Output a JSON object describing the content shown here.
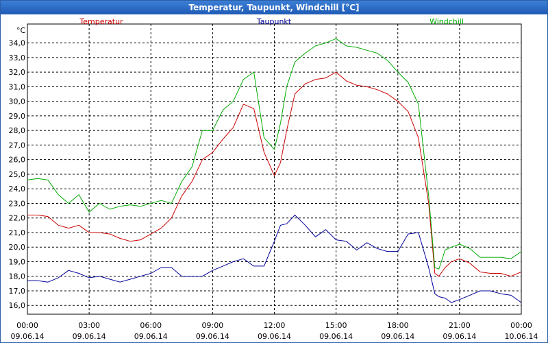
{
  "window": {
    "title": "Temperatur, Taupunkt, Windchill [°C]"
  },
  "chart_data": {
    "type": "line",
    "title": "Temperatur, Taupunkt, Windchill [°C]",
    "ylabel": "°C",
    "ylim": [
      15.4,
      35.3
    ],
    "xlim": [
      "2014-06-09T00:00",
      "2014-06-10T00:00"
    ],
    "grid": true,
    "y_ticks": [
      "16,0",
      "17,0",
      "18,0",
      "19,0",
      "20,0",
      "21,0",
      "22,0",
      "23,0",
      "24,0",
      "25,0",
      "26,0",
      "27,0",
      "28,0",
      "29,0",
      "30,0",
      "31,0",
      "32,0",
      "33,0",
      "34,0"
    ],
    "x_ticks": [
      {
        "time": "00:00",
        "date": "09.06.14"
      },
      {
        "time": "03:00",
        "date": "09.06.14"
      },
      {
        "time": "06:00",
        "date": "09.06.14"
      },
      {
        "time": "09:00",
        "date": "09.06.14"
      },
      {
        "time": "12:00",
        "date": "09.06.14"
      },
      {
        "time": "15:00",
        "date": "09.06.14"
      },
      {
        "time": "18:00",
        "date": "09.06.14"
      },
      {
        "time": "21:00",
        "date": "09.06.14"
      },
      {
        "time": "00:00",
        "date": "10.06.14"
      }
    ],
    "series": [
      {
        "name": "Temperatur",
        "color": "#cc0000",
        "x": [
          0,
          0.5,
          1,
          1.5,
          2,
          2.5,
          3,
          3.5,
          4,
          4.5,
          5,
          5.5,
          6,
          6.5,
          7,
          7.5,
          8,
          8.5,
          9,
          9.5,
          10,
          10.5,
          11,
          11.5,
          12,
          12.3,
          12.6,
          13,
          13.5,
          14,
          14.5,
          15,
          15.5,
          16,
          16.5,
          17,
          17.5,
          18,
          18.5,
          19,
          19.5,
          19.8,
          20,
          20.3,
          20.6,
          21,
          21.5,
          22,
          22.5,
          23,
          23.5,
          24
        ],
        "y": [
          22.2,
          22.2,
          22.1,
          21.5,
          21.3,
          21.5,
          21.0,
          21.0,
          20.9,
          20.6,
          20.4,
          20.5,
          20.9,
          21.3,
          22.0,
          23.5,
          24.5,
          26.0,
          26.5,
          27.4,
          28.2,
          29.8,
          29.5,
          26.5,
          24.9,
          25.8,
          28.0,
          30.5,
          31.2,
          31.5,
          31.6,
          32.0,
          31.4,
          31.1,
          31.0,
          30.8,
          30.5,
          30.0,
          29.3,
          27.5,
          23.0,
          18.2,
          18.0,
          18.6,
          19.0,
          19.2,
          18.9,
          18.3,
          18.2,
          18.2,
          18.0,
          18.3
        ]
      },
      {
        "name": "Taupunkt",
        "color": "#000099",
        "x": [
          0,
          0.5,
          1,
          1.5,
          2,
          2.5,
          3,
          3.5,
          4,
          4.5,
          5,
          5.5,
          6,
          6.5,
          7,
          7.5,
          8,
          8.5,
          9,
          9.5,
          10,
          10.5,
          11,
          11.5,
          12,
          12.3,
          12.6,
          13,
          13.5,
          14,
          14.5,
          15,
          15.5,
          16,
          16.5,
          17,
          17.5,
          18,
          18.5,
          19,
          19.5,
          19.8,
          20,
          20.3,
          20.6,
          21,
          21.5,
          22,
          22.5,
          23,
          23.5,
          24
        ],
        "y": [
          17.7,
          17.7,
          17.6,
          17.9,
          18.4,
          18.2,
          17.9,
          18.0,
          17.8,
          17.6,
          17.8,
          18.0,
          18.2,
          18.6,
          18.6,
          18.0,
          18.0,
          18.0,
          18.4,
          18.7,
          19.0,
          19.2,
          18.7,
          18.7,
          20.4,
          21.5,
          21.6,
          22.2,
          21.5,
          20.7,
          21.2,
          20.5,
          20.4,
          19.8,
          20.3,
          19.9,
          19.7,
          19.7,
          20.9,
          21.0,
          18.6,
          16.8,
          16.6,
          16.5,
          16.2,
          16.4,
          16.7,
          17.0,
          17.0,
          16.8,
          16.7,
          16.2
        ]
      },
      {
        "name": "Windchill",
        "color": "#00aa00",
        "x": [
          0,
          0.5,
          1,
          1.5,
          2,
          2.5,
          3,
          3.5,
          4,
          4.5,
          5,
          5.5,
          6,
          6.5,
          7,
          7.5,
          8,
          8.5,
          9,
          9.5,
          10,
          10.5,
          11,
          11.5,
          12,
          12.3,
          12.6,
          13,
          13.5,
          14,
          14.5,
          15,
          15.5,
          16,
          16.5,
          17,
          17.5,
          18,
          18.5,
          19,
          19.5,
          19.8,
          20,
          20.3,
          20.6,
          21,
          21.5,
          22,
          22.5,
          23,
          23.5,
          24
        ],
        "y": [
          24.6,
          24.7,
          24.6,
          23.6,
          23.0,
          23.6,
          22.4,
          23.0,
          22.6,
          22.8,
          22.9,
          22.8,
          23.0,
          23.2,
          23.0,
          24.5,
          25.5,
          28.0,
          28.0,
          29.4,
          30.0,
          31.5,
          32.0,
          27.5,
          26.7,
          28.5,
          31.0,
          32.7,
          33.3,
          33.8,
          34.0,
          34.3,
          33.8,
          33.7,
          33.5,
          33.3,
          32.8,
          32.0,
          31.3,
          29.8,
          23.5,
          18.6,
          18.5,
          19.8,
          20.0,
          20.2,
          19.9,
          19.3,
          19.3,
          19.3,
          19.2,
          19.7
        ]
      }
    ]
  }
}
